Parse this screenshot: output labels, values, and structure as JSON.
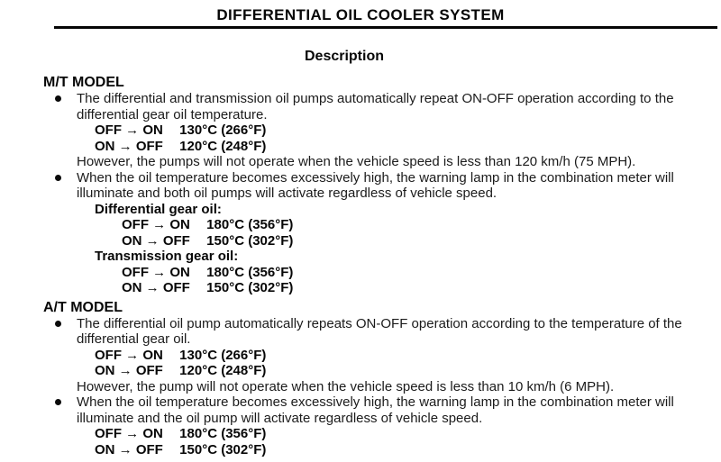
{
  "doc": {
    "title": "DIFFERENTIAL OIL COOLER SYSTEM",
    "subtitle": "Description"
  },
  "mt": {
    "heading": "M/T MODEL",
    "b1_line1": "The differential and transmission oil pumps automatically repeat ON-OFF operation according to the",
    "b1_line2": "differential gear oil temperature.",
    "b1_temps": [
      {
        "label": "OFF → ON",
        "value": "130°C (266°F)"
      },
      {
        "label": "ON → OFF",
        "value": "120°C (248°F)"
      }
    ],
    "b1_note": "However, the pumps will not operate when the vehicle speed is less than 120 km/h (75 MPH).",
    "b2_line1": "When the oil temperature becomes excessively high, the warning lamp in the combination meter will",
    "b2_line2": "illuminate and both oil pumps will activate regardless of vehicle speed.",
    "diff_label": "Differential gear oil:",
    "diff_temps": [
      {
        "label": "OFF → ON",
        "value": "180°C (356°F)"
      },
      {
        "label": "ON → OFF",
        "value": "150°C (302°F)"
      }
    ],
    "trans_label": "Transmission gear oil:",
    "trans_temps": [
      {
        "label": "OFF → ON",
        "value": "180°C (356°F)"
      },
      {
        "label": "ON → OFF",
        "value": "150°C (302°F)"
      }
    ]
  },
  "at": {
    "heading": "A/T MODEL",
    "b1_line1": "The differential oil pump automatically repeats ON-OFF operation according to the temperature of the",
    "b1_line2": "differential gear oil.",
    "b1_temps": [
      {
        "label": "OFF → ON",
        "value": "130°C (266°F)"
      },
      {
        "label": "ON → OFF",
        "value": "120°C (248°F)"
      }
    ],
    "b1_note": "However, the pump will not operate when the vehicle speed is less than 10 km/h (6 MPH).",
    "b2_line1": "When the oil temperature becomes excessively high, the warning lamp in the combination meter will",
    "b2_line2": "illuminate and the oil pump will activate regardless of vehicle speed.",
    "b2_temps": [
      {
        "label": "OFF → ON",
        "value": "180°C (356°F)"
      },
      {
        "label": "ON → OFF",
        "value": "150°C (302°F)"
      }
    ]
  }
}
